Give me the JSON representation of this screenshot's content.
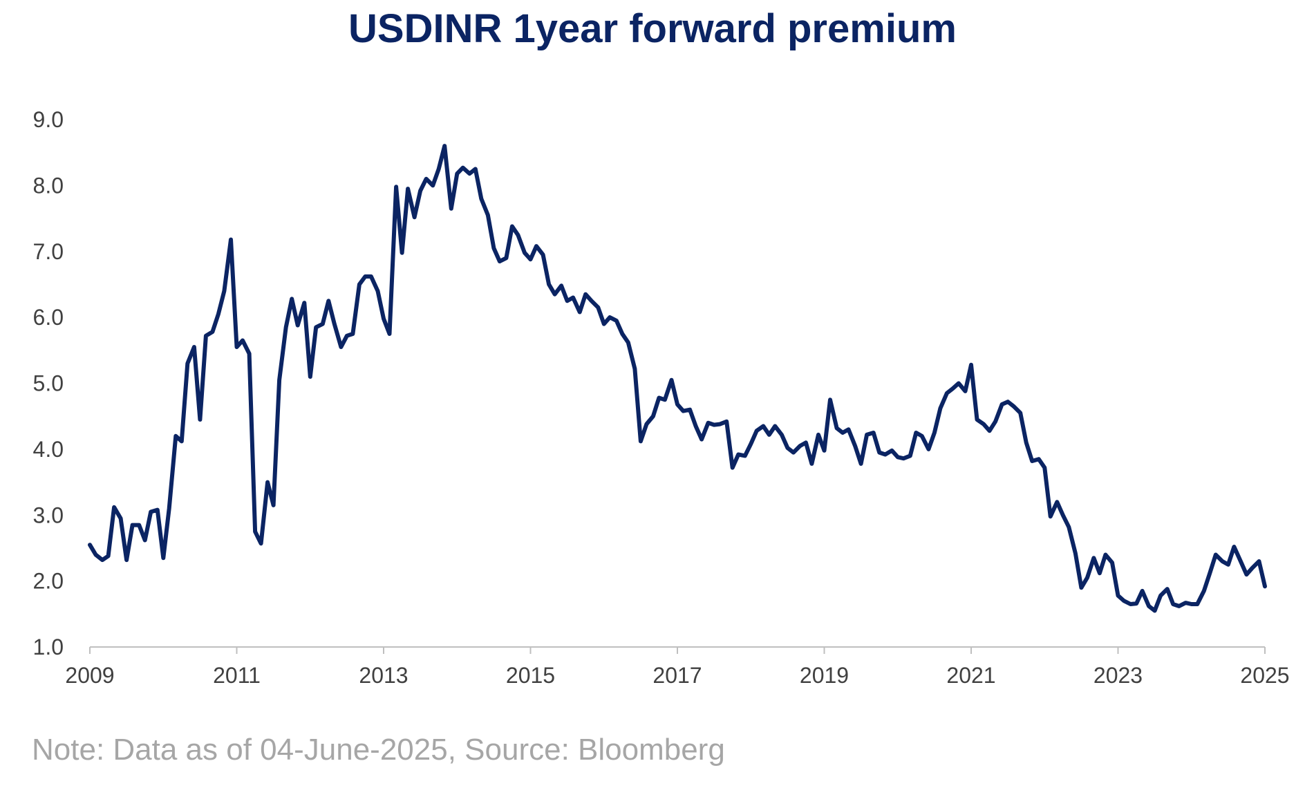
{
  "chart_data": {
    "type": "line",
    "title": "USDINR 1year forward premium",
    "xlabel": "",
    "ylabel": "",
    "note": "Note: Data as of 04-June-2025, Source: Bloomberg",
    "xlim": [
      2009,
      2025
    ],
    "ylim": [
      1.0,
      9.0
    ],
    "x_ticks": [
      "2009",
      "2011",
      "2013",
      "2015",
      "2017",
      "2019",
      "2021",
      "2023",
      "2025"
    ],
    "y_ticks": [
      "1.0",
      "2.0",
      "3.0",
      "4.0",
      "5.0",
      "6.0",
      "7.0",
      "8.0",
      "9.0"
    ],
    "grid": false,
    "line_color": "#0b2463",
    "series": [
      {
        "x": [
          2009.0,
          2009.08,
          2009.17,
          2009.25,
          2009.33,
          2009.42,
          2009.5,
          2009.58,
          2009.67,
          2009.75,
          2009.83,
          2009.92,
          2010.0,
          2010.08,
          2010.17,
          2010.25,
          2010.33,
          2010.42,
          2010.5,
          2010.58,
          2010.67,
          2010.75,
          2010.83,
          2010.92,
          2011.0,
          2011.08,
          2011.17,
          2011.25,
          2011.33,
          2011.42,
          2011.5,
          2011.58,
          2011.67,
          2011.75,
          2011.83,
          2011.92,
          2012.0,
          2012.08,
          2012.17,
          2012.25,
          2012.33,
          2012.42,
          2012.5,
          2012.58,
          2012.67,
          2012.75,
          2012.83,
          2012.92,
          2013.0,
          2013.08,
          2013.17,
          2013.25,
          2013.33,
          2013.42,
          2013.5,
          2013.58,
          2013.67,
          2013.75,
          2013.83,
          2013.92,
          2014.0,
          2014.08,
          2014.17,
          2014.25,
          2014.33,
          2014.42,
          2014.5,
          2014.58,
          2014.67,
          2014.75,
          2014.83,
          2014.92,
          2015.0,
          2015.08,
          2015.17,
          2015.25,
          2015.33,
          2015.42,
          2015.5,
          2015.58,
          2015.67,
          2015.75,
          2015.83,
          2015.92,
          2016.0,
          2016.08,
          2016.17,
          2016.25,
          2016.33,
          2016.42,
          2016.5,
          2016.58,
          2016.67,
          2016.75,
          2016.83,
          2016.92,
          2017.0,
          2017.08,
          2017.17,
          2017.25,
          2017.33,
          2017.42,
          2017.5,
          2017.58,
          2017.67,
          2017.75,
          2017.83,
          2017.92,
          2018.0,
          2018.08,
          2018.17,
          2018.25,
          2018.33,
          2018.42,
          2018.5,
          2018.58,
          2018.67,
          2018.75,
          2018.83,
          2018.92,
          2019.0,
          2019.08,
          2019.17,
          2019.25,
          2019.33,
          2019.42,
          2019.5,
          2019.58,
          2019.67,
          2019.75,
          2019.83,
          2019.92,
          2020.0,
          2020.08,
          2020.17,
          2020.25,
          2020.33,
          2020.42,
          2020.5,
          2020.58,
          2020.67,
          2020.75,
          2020.83,
          2020.92,
          2021.0,
          2021.08,
          2021.17,
          2021.25,
          2021.33,
          2021.42,
          2021.5,
          2021.58,
          2021.67,
          2021.75,
          2021.83,
          2021.92,
          2022.0,
          2022.08,
          2022.17,
          2022.25,
          2022.33,
          2022.42,
          2022.5,
          2022.58,
          2022.67,
          2022.75,
          2022.83,
          2022.92,
          2023.0,
          2023.08,
          2023.17,
          2023.25,
          2023.33,
          2023.42,
          2023.5,
          2023.58,
          2023.67,
          2023.75,
          2023.83,
          2023.92,
          2024.0,
          2024.08,
          2024.17,
          2024.25,
          2024.33,
          2024.42,
          2024.5,
          2024.58,
          2024.67,
          2024.75,
          2024.83,
          2024.92,
          2025.0
        ],
        "values": [
          2.55,
          2.4,
          2.32,
          2.38,
          3.12,
          2.95,
          2.32,
          2.85,
          2.85,
          2.62,
          3.05,
          3.08,
          2.35,
          3.1,
          4.2,
          4.12,
          5.3,
          5.55,
          4.45,
          5.72,
          5.78,
          6.05,
          6.4,
          7.18,
          5.55,
          5.65,
          5.45,
          2.75,
          2.57,
          3.5,
          3.15,
          5.05,
          5.85,
          6.28,
          5.88,
          6.22,
          5.1,
          5.85,
          5.9,
          6.25,
          5.9,
          5.55,
          5.72,
          5.75,
          6.5,
          6.62,
          6.62,
          6.4,
          5.98,
          5.75,
          7.98,
          6.98,
          7.95,
          7.52,
          7.92,
          8.1,
          8.0,
          8.25,
          8.6,
          7.65,
          8.18,
          8.27,
          8.18,
          8.25,
          7.8,
          7.55,
          7.05,
          6.85,
          6.9,
          7.38,
          7.25,
          6.98,
          6.88,
          7.08,
          6.95,
          6.5,
          6.35,
          6.48,
          6.25,
          6.3,
          6.08,
          6.35,
          6.25,
          6.15,
          5.9,
          6.0,
          5.95,
          5.75,
          5.62,
          5.22,
          4.12,
          4.38,
          4.5,
          4.78,
          4.75,
          5.05,
          4.68,
          4.58,
          4.6,
          4.35,
          4.15,
          4.4,
          4.37,
          4.38,
          4.42,
          3.72,
          3.92,
          3.9,
          4.08,
          4.28,
          4.35,
          4.22,
          4.35,
          4.22,
          4.02,
          3.95,
          4.05,
          4.1,
          3.78,
          4.22,
          3.98,
          4.75,
          4.32,
          4.25,
          4.3,
          4.05,
          3.78,
          4.22,
          4.25,
          3.95,
          3.92,
          3.98,
          3.88,
          3.86,
          3.9,
          4.25,
          4.2,
          4.0,
          4.25,
          4.62,
          4.85,
          4.92,
          5.0,
          4.88,
          5.28,
          4.45,
          4.38,
          4.28,
          4.42,
          4.68,
          4.72,
          4.65,
          4.55,
          4.1,
          3.82,
          3.85,
          3.72,
          2.98,
          3.2,
          3.0,
          2.82,
          2.42,
          1.9,
          2.05,
          2.35,
          2.12,
          2.4,
          2.28,
          1.78,
          1.7,
          1.65,
          1.66,
          1.85,
          1.62,
          1.55,
          1.78,
          1.88,
          1.65,
          1.62,
          1.67,
          1.65,
          1.65,
          1.85,
          2.12,
          2.4,
          2.3,
          2.25,
          2.52,
          2.3,
          2.1,
          2.2,
          2.3,
          1.92
        ]
      }
    ]
  }
}
